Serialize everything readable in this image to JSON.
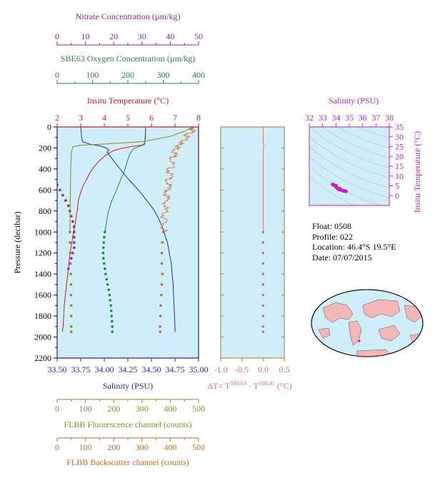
{
  "colors": {
    "nitrate": "#8b2a8b",
    "oxygen": "#1f8a3a",
    "temperature": "#d81818",
    "salinity": "#1c2fb0",
    "salinity_panel": "#c21fc2",
    "fluorescence": "#8a8a20",
    "backscatter": "#d2691e",
    "delta_t": "#e0706a",
    "plot_bg": "#cfeefa",
    "land": "#f4b7b7",
    "ocean": "#cfeefa"
  },
  "info": {
    "float": "Float:  0508",
    "profile": "Profile:  022",
    "location": "Location:  46.4°S  19.5°E",
    "date": "Date:  07/07/2015"
  },
  "footer_text": "",
  "chart_data": [
    {
      "type": "line",
      "name": "main-profile-panel",
      "ylabel": "Pressure (decibar)",
      "ylim": [
        2200,
        0
      ],
      "yticks": [
        0,
        200,
        400,
        600,
        800,
        1000,
        1200,
        1400,
        1600,
        1800,
        2000,
        2200
      ],
      "axes": {
        "nitrate": {
          "label": "Nitrate Concentration (µm/kg)",
          "range": [
            0,
            50
          ],
          "ticks": [
            0,
            10,
            20,
            30,
            40,
            50
          ]
        },
        "oxygen": {
          "label": "SBE63 Oxygen Concentration (µm/kg)",
          "range": [
            0,
            400
          ],
          "ticks": [
            0,
            100,
            200,
            300,
            400
          ]
        },
        "temperature": {
          "label": "Insitu Temperature (°C)",
          "range": [
            2,
            8
          ],
          "ticks": [
            2,
            3,
            4,
            5,
            6,
            7,
            8
          ]
        },
        "salinity": {
          "label": "Salinity (PSU)",
          "range": [
            33.5,
            35.0
          ],
          "ticks": [
            "33.50",
            "33.75",
            "34.00",
            "34.25",
            "34.50",
            "34.75",
            "35.00"
          ]
        },
        "fluorescence": {
          "label": "FLBB Fluorescence channel (counts)",
          "range": [
            0,
            500
          ],
          "ticks": [
            0,
            100,
            200,
            300,
            400,
            500
          ]
        },
        "backscatter": {
          "label": "FLBB Backscatter channel (counts)",
          "range": [
            0,
            500
          ],
          "ticks": [
            0,
            100,
            200,
            300,
            400,
            500
          ]
        }
      },
      "series": [
        {
          "key": "temperature",
          "style": "line",
          "points": [
            [
              5.75,
              0
            ],
            [
              5.74,
              80
            ],
            [
              5.72,
              150
            ],
            [
              5.7,
              170
            ],
            [
              5.2,
              185
            ],
            [
              4.7,
              205
            ],
            [
              4.4,
              225
            ],
            [
              4.2,
              250
            ],
            [
              4.0,
              280
            ],
            [
              3.8,
              320
            ],
            [
              3.6,
              370
            ],
            [
              3.4,
              430
            ],
            [
              3.25,
              500
            ],
            [
              3.1,
              560
            ],
            [
              3.0,
              620
            ],
            [
              2.9,
              700
            ],
            [
              2.85,
              800
            ],
            [
              2.78,
              900
            ],
            [
              2.7,
              1000
            ],
            [
              2.62,
              1100
            ],
            [
              2.55,
              1200
            ],
            [
              2.5,
              1300
            ],
            [
              2.45,
              1400
            ],
            [
              2.4,
              1500
            ],
            [
              2.35,
              1600
            ],
            [
              2.3,
              1700
            ],
            [
              2.28,
              1800
            ],
            [
              2.25,
              1900
            ],
            [
              2.22,
              1950
            ]
          ]
        },
        {
          "key": "salinity",
          "style": "line",
          "points": [
            [
              33.75,
              0
            ],
            [
              33.76,
              100
            ],
            [
              33.77,
              140
            ],
            [
              33.85,
              165
            ],
            [
              33.95,
              180
            ],
            [
              34.02,
              200
            ],
            [
              34.05,
              220
            ],
            [
              34.03,
              240
            ],
            [
              34.08,
              300
            ],
            [
              34.15,
              380
            ],
            [
              34.22,
              460
            ],
            [
              34.3,
              540
            ],
            [
              34.38,
              620
            ],
            [
              34.45,
              700
            ],
            [
              34.52,
              780
            ],
            [
              34.57,
              860
            ],
            [
              34.61,
              940
            ],
            [
              34.64,
              1020
            ],
            [
              34.67,
              1100
            ],
            [
              34.69,
              1200
            ],
            [
              34.71,
              1300
            ],
            [
              34.72,
              1400
            ],
            [
              34.73,
              1500
            ],
            [
              34.735,
              1600
            ],
            [
              34.74,
              1700
            ],
            [
              34.745,
              1800
            ],
            [
              34.75,
              1900
            ],
            [
              34.75,
              1950
            ]
          ]
        },
        {
          "key": "oxygen",
          "style": "line",
          "points": [
            [
              250,
              0
            ],
            [
              250,
              100
            ],
            [
              248,
              150
            ],
            [
              240,
              175
            ],
            [
              215,
              210
            ],
            [
              205,
              260
            ],
            [
              198,
              330
            ],
            [
              190,
              420
            ],
            [
              180,
              500
            ],
            [
              168,
              600
            ],
            [
              155,
              700
            ],
            [
              145,
              800
            ],
            [
              140,
              900
            ],
            [
              135,
              1000
            ]
          ]
        },
        {
          "key": "oxygen",
          "style": "dotted",
          "points": [
            [
              135,
              1000
            ],
            [
              133,
              1050
            ],
            [
              132,
              1100
            ],
            [
              131,
              1150
            ],
            [
              130,
              1200
            ],
            [
              131,
              1250
            ],
            [
              133,
              1300
            ],
            [
              135,
              1350
            ],
            [
              137,
              1400
            ],
            [
              140,
              1450
            ],
            [
              143,
              1500
            ],
            [
              146,
              1550
            ],
            [
              148,
              1600
            ],
            [
              150,
              1650
            ],
            [
              152,
              1700
            ],
            [
              153,
              1750
            ],
            [
              154,
              1800
            ],
            [
              155,
              1850
            ],
            [
              156,
              1900
            ],
            [
              156,
              1950
            ]
          ]
        },
        {
          "key": "nitrate",
          "style": "dotted",
          "points": [
            [
              0,
              550
            ],
            [
              1,
              600
            ],
            [
              2,
              650
            ],
            [
              3,
              700
            ],
            [
              4,
              750
            ],
            [
              4.5,
              800
            ],
            [
              5,
              850
            ],
            [
              5.5,
              900
            ],
            [
              6,
              950
            ],
            [
              6,
              1000
            ],
            [
              6,
              1050
            ],
            [
              6,
              1100
            ],
            [
              6,
              1150
            ],
            [
              5.5,
              1200
            ],
            [
              5,
              1250
            ],
            [
              4.5,
              1300
            ],
            [
              4,
              1350
            ]
          ]
        },
        {
          "key": "fluorescence",
          "style": "line",
          "points": [
            [
              480,
              0
            ],
            [
              450,
              40
            ],
            [
              400,
              90
            ],
            [
              300,
              140
            ],
            [
              180,
              160
            ],
            [
              80,
              175
            ],
            [
              55,
              190
            ],
            [
              50,
              250
            ],
            [
              48,
              400
            ],
            [
              47,
              600
            ],
            [
              46,
              800
            ],
            [
              45,
              1000
            ]
          ]
        },
        {
          "key": "fluorescence",
          "style": "dotted",
          "points": [
            [
              45,
              1000
            ],
            [
              45,
              1100
            ],
            [
              46,
              1200
            ],
            [
              47,
              1300
            ],
            [
              48,
              1400
            ],
            [
              49,
              1500
            ],
            [
              49,
              1600
            ],
            [
              50,
              1700
            ],
            [
              50,
              1800
            ],
            [
              50,
              1900
            ],
            [
              50,
              1950
            ]
          ]
        },
        {
          "key": "backscatter",
          "style": "noisy",
          "points": [
            [
              470,
              0
            ],
            [
              480,
              30
            ],
            [
              460,
              80
            ],
            [
              440,
              150
            ],
            [
              430,
              180
            ],
            [
              420,
              220
            ],
            [
              410,
              300
            ],
            [
              400,
              400
            ],
            [
              395,
              500
            ],
            [
              390,
              600
            ],
            [
              385,
              700
            ],
            [
              380,
              800
            ],
            [
              378,
              900
            ],
            [
              375,
              1000
            ]
          ]
        },
        {
          "key": "backscatter",
          "style": "dotted",
          "points": [
            [
              375,
              1000
            ],
            [
              372,
              1100
            ],
            [
              370,
              1200
            ],
            [
              370,
              1300
            ],
            [
              372,
              1400
            ],
            [
              370,
              1500
            ],
            [
              368,
              1600
            ],
            [
              366,
              1700
            ],
            [
              365,
              1800
            ],
            [
              364,
              1900
            ],
            [
              364,
              1950
            ]
          ]
        }
      ]
    },
    {
      "type": "line",
      "name": "delta-t-panel",
      "xlabel": "ΔT= T",
      "xlabel_sup1": "SBE63",
      "xlabel_mid": " - T",
      "xlabel_sup2": "SBE41",
      "xlabel_end": " (°C)",
      "xlim": [
        -1.0,
        0.5
      ],
      "xticks": [
        "-1.0",
        "-0.5",
        "0.0",
        "0.5"
      ],
      "ylim": [
        2200,
        0
      ],
      "series": [
        {
          "style": "line",
          "points": [
            [
              0.0,
              0
            ],
            [
              0.0,
              150
            ],
            [
              0.02,
              180
            ],
            [
              0.0,
              220
            ],
            [
              0.0,
              1000
            ]
          ]
        },
        {
          "style": "dotted",
          "points": [
            [
              0.0,
              1000
            ],
            [
              0.0,
              1100
            ],
            [
              0.0,
              1200
            ],
            [
              0.0,
              1300
            ],
            [
              0.0,
              1400
            ],
            [
              0.0,
              1500
            ],
            [
              0.0,
              1600
            ],
            [
              0.0,
              1700
            ],
            [
              0.0,
              1800
            ],
            [
              0.0,
              1900
            ],
            [
              0.0,
              1950
            ]
          ]
        }
      ]
    },
    {
      "type": "scatter",
      "name": "ts-diagram",
      "title": "Salinity (PSU)",
      "ylabel": "Insitu Temperature (°C)",
      "xlim": [
        32,
        38
      ],
      "xticks": [
        32,
        33,
        34,
        35,
        36,
        37,
        38
      ],
      "ylim": [
        -5,
        35
      ],
      "yticks": [
        0,
        5,
        10,
        15,
        20,
        25,
        30,
        35
      ],
      "points": [
        [
          33.75,
          5.7
        ],
        [
          33.85,
          5.4
        ],
        [
          34.0,
          4.5
        ],
        [
          34.1,
          3.8
        ],
        [
          34.2,
          3.2
        ],
        [
          34.35,
          2.9
        ],
        [
          34.5,
          2.6
        ],
        [
          34.6,
          2.4
        ],
        [
          34.7,
          2.3
        ],
        [
          34.75,
          2.2
        ],
        [
          34.0,
          5.0
        ],
        [
          34.3,
          3.5
        ]
      ]
    }
  ]
}
